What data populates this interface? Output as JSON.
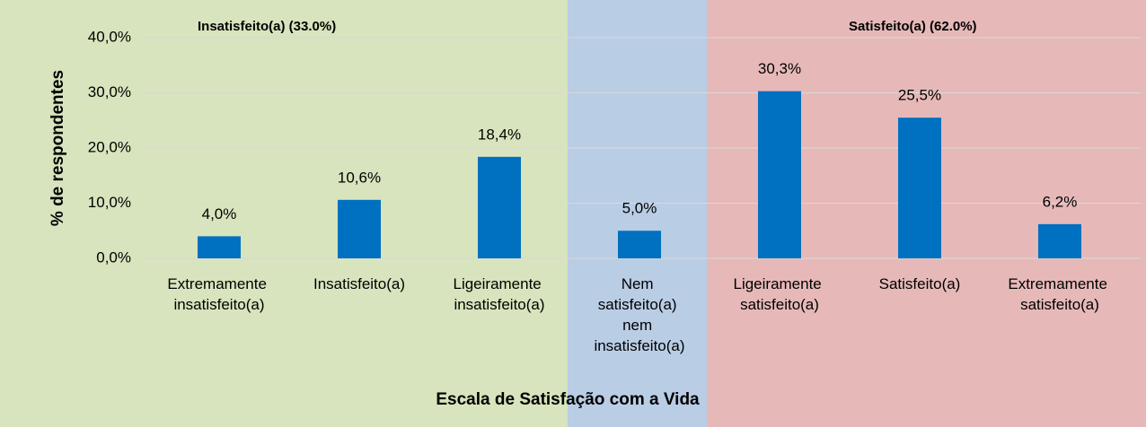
{
  "chart_data": {
    "type": "bar",
    "categories": [
      "Extremamente insatisfeito(a)",
      "Insatisfeito(a)",
      "Ligeiramente insatisfeito(a)",
      "Nem satisfeito(a) nem insatisfeito(a)",
      "Ligeiramente satisfeito(a)",
      "Satisfeito(a)",
      "Extremamente satisfeito(a)"
    ],
    "values": [
      4.0,
      10.6,
      18.4,
      5.0,
      30.3,
      25.5,
      6.2
    ],
    "value_labels": [
      "4,0%",
      "10,6%",
      "18,4%",
      "5,0%",
      "30,3%",
      "25,5%",
      "6,2%"
    ],
    "color": "#0070c0",
    "ylim": [
      0,
      40
    ],
    "yticks": [
      {
        "value": 0,
        "label": "0,0%"
      },
      {
        "value": 10,
        "label": "10,0%"
      },
      {
        "value": 20,
        "label": "20,0%"
      },
      {
        "value": 30,
        "label": "30,0%"
      },
      {
        "value": 40,
        "label": "40,0%"
      }
    ],
    "grid": true,
    "xlabel": "Escala de Satisfação com a Vida",
    "ylabel": "% de respondentes",
    "annotations": [
      "Insatisfeito(a) (33.0%)",
      "Satisfeito(a) (62.0%)"
    ]
  }
}
